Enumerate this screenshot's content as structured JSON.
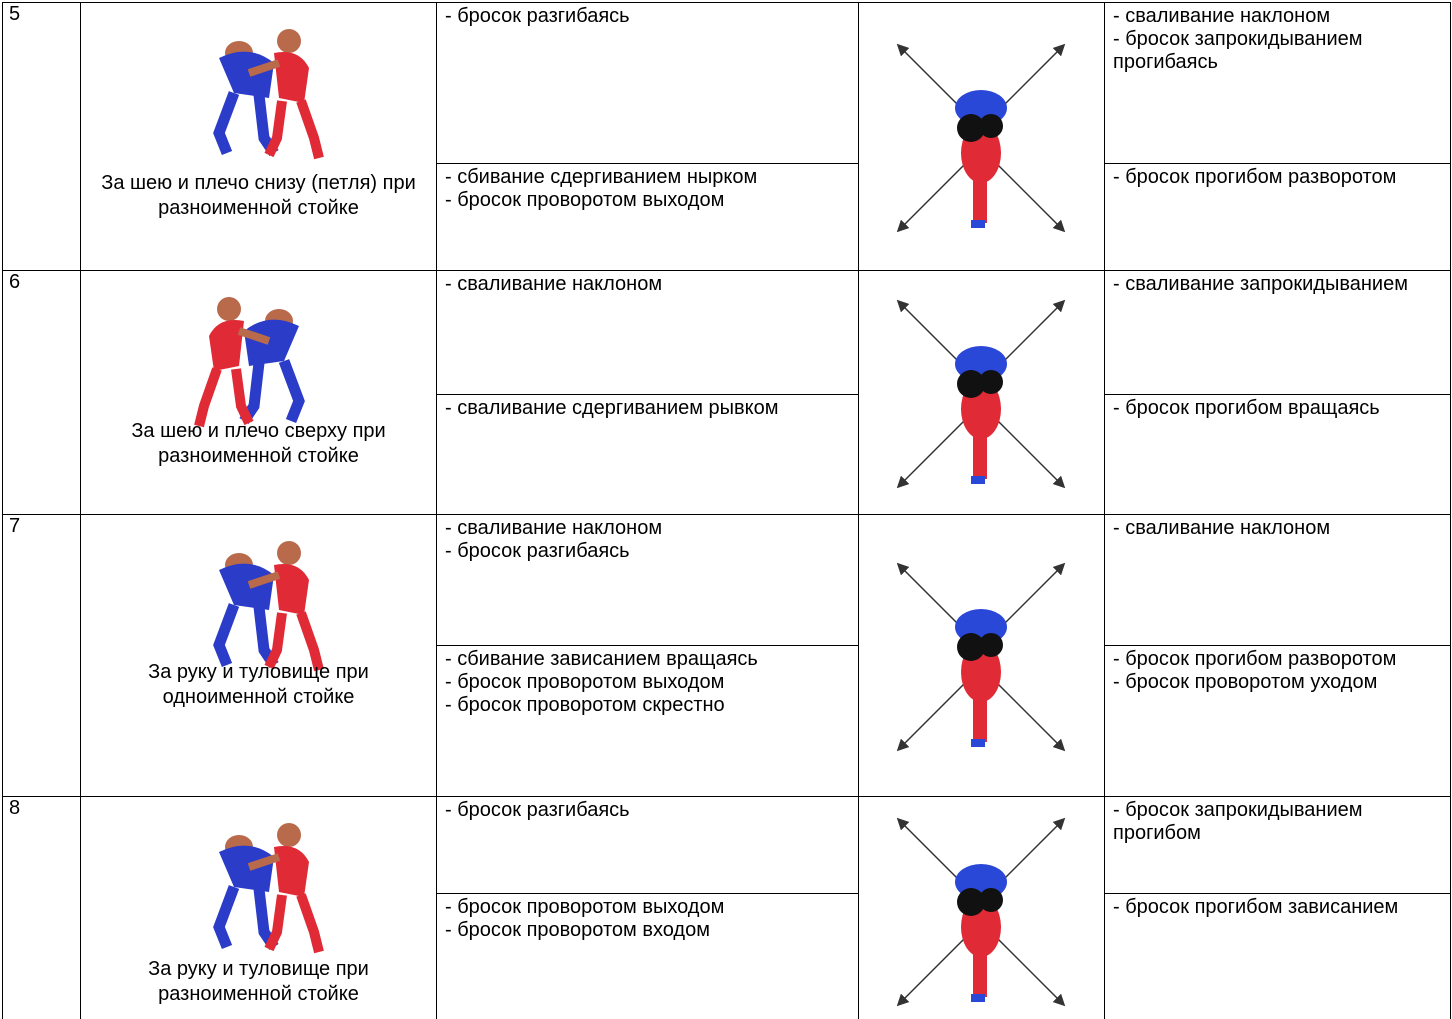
{
  "table": {
    "rows": [
      {
        "number": "5",
        "caption": "За шею и плечо снизу (петля) при разноименной стойке",
        "left_top": [
          "- бросок разгибаясь"
        ],
        "left_bottom": [
          "- сбивание сдергиванием нырком",
          "- бросок проворотом выходом"
        ],
        "right_top": [
          "- сваливание наклоном",
          "- бросок запрокидыванием прогибаясь"
        ],
        "right_bottom": [
          "- бросок прогибом разворотом"
        ]
      },
      {
        "number": "6",
        "caption": "За шею и плечо сверху при разноименной стойке",
        "left_top": [
          "- сваливание наклоном"
        ],
        "left_bottom": [
          "- сваливание сдергиванием рывком"
        ],
        "right_top": [
          "- сваливание запрокидыванием"
        ],
        "right_bottom": [
          "- бросок прогибом вращаясь"
        ]
      },
      {
        "number": "7",
        "caption": "За руку и туловище при одноименной стойке",
        "left_top": [
          "- сваливание наклоном",
          "- бросок разгибаясь"
        ],
        "left_bottom": [
          "- сбивание зависанием вращаясь",
          "- бросок проворотом выходом",
          "- бросок проворотом скрестно"
        ],
        "right_top": [
          "- сваливание наклоном"
        ],
        "right_bottom": [
          "- бросок прогибом разворотом",
          "- бросок проворотом уходом"
        ]
      },
      {
        "number": "8",
        "caption": "За руку и туловище при разноименной стойке",
        "left_top": [
          "- бросок разгибаясь"
        ],
        "left_bottom": [
          "- бросок проворотом выходом",
          "- бросок проворотом входом"
        ],
        "right_top": [
          "- бросок запрокидыванием прогибом"
        ],
        "right_bottom": [
          "- бросок прогибом зависанием"
        ]
      }
    ]
  }
}
